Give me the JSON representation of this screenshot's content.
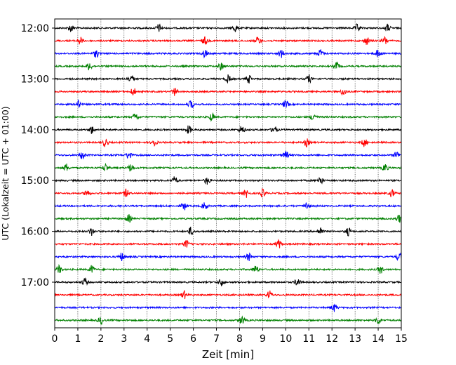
{
  "chart_data": {
    "type": "line",
    "title": "",
    "xlabel": "Zeit  [min]",
    "ylabel": "UTC (Lokalzeit = UTC + 01:00)",
    "xlim": [
      0,
      15
    ],
    "x_ticks": [
      0,
      1,
      2,
      3,
      4,
      5,
      6,
      7,
      8,
      9,
      10,
      11,
      12,
      13,
      14,
      15
    ],
    "x_tick_labels": [
      "0",
      "1",
      "2",
      "3",
      "4",
      "5",
      "6",
      "7",
      "8",
      "9",
      "10",
      "11",
      "12",
      "13",
      "14",
      "15"
    ],
    "y_tick_labels": [
      "12:00",
      "13:00",
      "14:00",
      "15:00",
      "16:00",
      "17:00"
    ],
    "grid": "vertical dotted lines at every minute",
    "color_cycle": [
      "#000000",
      "#ff0000",
      "#0000ff",
      "#008000"
    ],
    "traces": [
      {
        "start": "12:00",
        "color": "#000000",
        "events_min": [
          0.7,
          4.5,
          7.8,
          13.1,
          14.4
        ]
      },
      {
        "start": "12:15",
        "color": "#ff0000",
        "events_min": [
          1.1,
          6.5,
          8.8,
          13.5,
          14.3
        ]
      },
      {
        "start": "12:30",
        "color": "#0000ff",
        "events_min": [
          1.8,
          6.5,
          9.8,
          11.5,
          14.0
        ]
      },
      {
        "start": "12:45",
        "color": "#008000",
        "events_min": [
          1.5,
          7.2,
          12.2
        ]
      },
      {
        "start": "13:00",
        "color": "#000000",
        "events_min": [
          3.3,
          7.5,
          8.4,
          11.0
        ]
      },
      {
        "start": "13:15",
        "color": "#ff0000",
        "events_min": [
          3.4,
          5.2,
          12.5
        ]
      },
      {
        "start": "13:30",
        "color": "#0000ff",
        "events_min": [
          1.0,
          5.9,
          10.0
        ]
      },
      {
        "start": "13:45",
        "color": "#008000",
        "events_min": [
          3.5,
          6.8,
          11.2
        ]
      },
      {
        "start": "14:00",
        "color": "#000000",
        "events_min": [
          1.6,
          5.8,
          8.1,
          9.5
        ]
      },
      {
        "start": "14:15",
        "color": "#ff0000",
        "events_min": [
          2.2,
          4.3,
          10.9,
          13.4
        ]
      },
      {
        "start": "14:30",
        "color": "#0000ff",
        "events_min": [
          1.2,
          3.2,
          10.0,
          14.8
        ]
      },
      {
        "start": "14:45",
        "color": "#008000",
        "events_min": [
          0.5,
          2.2,
          3.3,
          14.3
        ]
      },
      {
        "start": "15:00",
        "color": "#000000",
        "events_min": [
          5.2,
          6.6,
          11.5
        ]
      },
      {
        "start": "15:15",
        "color": "#ff0000",
        "events_min": [
          1.4,
          3.1,
          8.3,
          9.0,
          14.6
        ]
      },
      {
        "start": "15:30",
        "color": "#0000ff",
        "events_min": [
          5.6,
          6.5,
          10.9
        ]
      },
      {
        "start": "15:45",
        "color": "#008000",
        "events_min": [
          3.2,
          14.9
        ]
      },
      {
        "start": "16:00",
        "color": "#000000",
        "events_min": [
          1.6,
          5.9,
          11.5,
          12.7
        ]
      },
      {
        "start": "16:15",
        "color": "#ff0000",
        "events_min": [
          5.7,
          9.7
        ]
      },
      {
        "start": "16:30",
        "color": "#0000ff",
        "events_min": [
          2.9,
          8.4,
          14.9
        ]
      },
      {
        "start": "16:45",
        "color": "#008000",
        "events_min": [
          0.2,
          1.6,
          8.7,
          14.1
        ]
      },
      {
        "start": "17:00",
        "color": "#000000",
        "events_min": [
          1.3,
          7.2,
          10.5
        ]
      },
      {
        "start": "17:15",
        "color": "#ff0000",
        "events_min": [
          5.6,
          9.3
        ]
      },
      {
        "start": "17:30",
        "color": "#0000ff",
        "events_min": [
          12.1
        ]
      },
      {
        "start": "17:45",
        "color": "#008000",
        "events_min": [
          2.0,
          8.1,
          14.0
        ]
      }
    ]
  }
}
